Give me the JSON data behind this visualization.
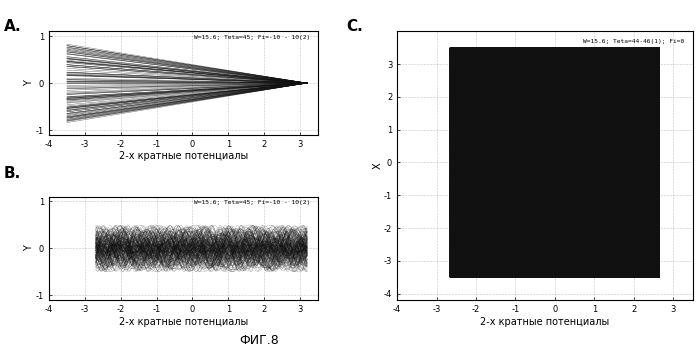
{
  "title_A": "A.",
  "title_B": "B.",
  "title_C": "C.",
  "xlabel": "2-х кратные потенциалы",
  "ylabel_AB": "Y",
  "ylabel_C": "X",
  "fig_label": "ФИГ.8",
  "annotation_AB": "W=15.6; Teta=45; Fi=-10 - 10(2)",
  "annotation_C": "W=15.6; Teta=44-46(1); Fi=0",
  "xlim_AB": [
    -4,
    3.5
  ],
  "ylim_A": [
    -1.1,
    1.1
  ],
  "ylim_B": [
    -1.1,
    1.1
  ],
  "xlim_C": [
    -4,
    3.5
  ],
  "ylim_C": [
    -4.2,
    4.0
  ],
  "xticks_AB": [
    -4,
    -3,
    -2,
    -1,
    0,
    1,
    2,
    3
  ],
  "xtick_labels_AB": [
    "-4",
    "-3",
    "-2",
    "-1",
    "0",
    "1",
    "2",
    "3"
  ],
  "yticks_AB": [
    -1,
    0,
    1
  ],
  "ytick_labels_AB": [
    "-1",
    "0",
    "1"
  ],
  "xticks_C": [
    -4,
    -3,
    -2,
    -1,
    0,
    1,
    2,
    3
  ],
  "xtick_labels_C": [
    "-4",
    "-3",
    "-2",
    "-1",
    "0",
    "1",
    "2",
    "3"
  ],
  "yticks_C": [
    -4,
    -3,
    -2,
    -1,
    0,
    1,
    2,
    3
  ],
  "ytick_labels_C": [
    "-4",
    "-3",
    "-2",
    "-1",
    "0",
    "1",
    "2",
    "3"
  ],
  "line_color": "#111111",
  "grid_color": "#777777"
}
